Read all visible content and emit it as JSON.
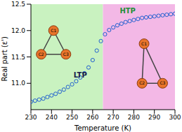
{
  "chart_data": {
    "type": "line",
    "x_label": "Temperature (K)",
    "y_label": "Real part (ε')",
    "x": [
      230,
      232,
      234,
      236,
      238,
      240,
      242,
      244,
      246,
      248,
      250,
      252,
      254,
      256,
      258,
      260,
      262,
      264,
      266,
      268,
      270,
      272,
      274,
      276,
      278,
      280,
      282,
      284,
      286,
      288,
      290,
      292,
      294,
      296,
      298,
      300
    ],
    "series": [
      {
        "name": "ε'",
        "color": "#1f5fd0",
        "marker": "o",
        "line_style": "none",
        "values": [
          10.65,
          10.67,
          10.69,
          10.71,
          10.74,
          10.77,
          10.8,
          10.84,
          10.88,
          10.93,
          10.98,
          11.04,
          11.11,
          11.19,
          11.3,
          11.44,
          11.62,
          11.8,
          11.93,
          12.01,
          12.06,
          12.1,
          12.13,
          12.16,
          12.18,
          12.2,
          12.22,
          12.24,
          12.25,
          12.26,
          12.27,
          12.28,
          12.29,
          12.3,
          12.31,
          12.32
        ]
      }
    ],
    "xlim": [
      230,
      300
    ],
    "xticks": [
      230,
      240,
      250,
      260,
      270,
      280,
      290,
      300
    ],
    "ylim": [
      10.5,
      12.5
    ],
    "yticks": [
      {
        "value": 11,
        "label": "11.0"
      },
      11.5,
      {
        "value": 12,
        "label": "12.0"
      },
      12.5
    ],
    "grid": false,
    "regions": [
      {
        "from": 230,
        "to": 265,
        "color": "#c9f2c0"
      },
      {
        "from": 265,
        "to": 300,
        "color": "#f3b8e6"
      }
    ],
    "annotations": [
      {
        "text": "LTP",
        "x": 254,
        "y": 11.15,
        "color": "#1a1a4a"
      },
      {
        "text": "HTP",
        "x": 277,
        "y": 12.38,
        "color": "#1f8f3a"
      }
    ],
    "molecules": [
      {
        "atoms": [
          {
            "label": "C1",
            "x": 241,
            "y": 12.0
          },
          {
            "label": "C2",
            "x": 235,
            "y": 11.55
          },
          {
            "label": "C3",
            "x": 247,
            "y": 11.55
          }
        ]
      },
      {
        "atoms": [
          {
            "label": "C1",
            "x": 285,
            "y": 11.75
          },
          {
            "label": "C2",
            "x": 284,
            "y": 11.0
          },
          {
            "label": "C3",
            "x": 294,
            "y": 11.0
          }
        ]
      }
    ]
  }
}
